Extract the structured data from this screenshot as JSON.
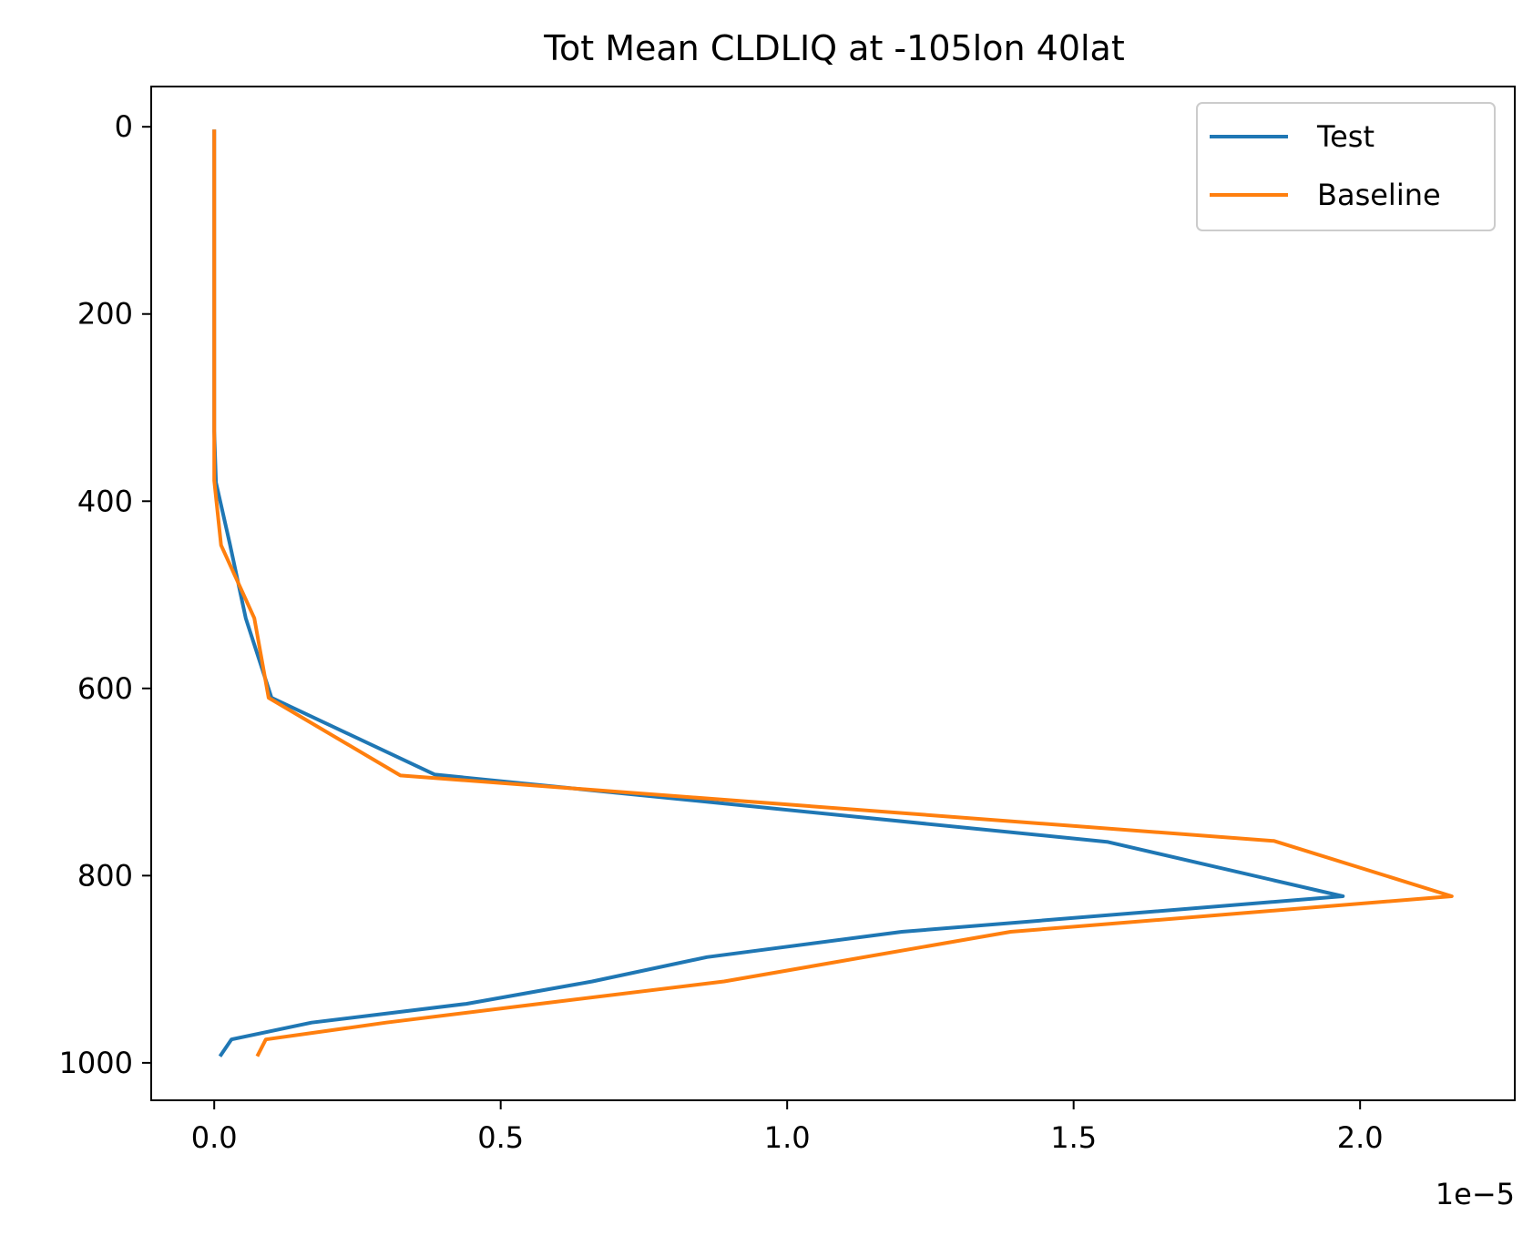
{
  "chart_data": {
    "type": "line",
    "title": "Tot Mean CLDLIQ at -105lon 40lat",
    "xlabel": "",
    "ylabel": "",
    "x_offset_label": "1e−5",
    "x_scale": 1e-05,
    "xlim": [
      -0.11,
      2.27
    ],
    "ylim": [
      1040,
      -43
    ],
    "x_ticks": [
      0.0,
      0.5,
      1.0,
      1.5,
      2.0
    ],
    "x_tick_labels": [
      "0.0",
      "0.5",
      "1.0",
      "1.5",
      "2.0"
    ],
    "y_ticks": [
      0,
      200,
      400,
      600,
      800,
      1000
    ],
    "y_tick_labels": [
      "0",
      "200",
      "400",
      "600",
      "800",
      "1000"
    ],
    "y_inverted": true,
    "grid": false,
    "legend_position": "top-right",
    "series": [
      {
        "name": "Test",
        "color": "#1f77b4",
        "x": [
          0.0,
          0.0,
          0.0,
          0.0,
          0.0,
          0.003,
          0.027,
          0.055,
          0.1,
          0.385,
          1.56,
          1.97,
          1.2,
          0.86,
          0.66,
          0.44,
          0.17,
          0.03,
          0.01
        ],
        "y": [
          3,
          100,
          200,
          300,
          325,
          380,
          445,
          525,
          610,
          692,
          764,
          822,
          860,
          887,
          913,
          937,
          957,
          975,
          993
        ]
      },
      {
        "name": "Baseline",
        "color": "#ff7f0e",
        "x": [
          0.0,
          0.0,
          0.0,
          0.0,
          0.0,
          0.0,
          0.012,
          0.07,
          0.095,
          0.325,
          1.85,
          2.16,
          1.39,
          0.89,
          0.58,
          0.3,
          0.09,
          0.075
        ],
        "y": [
          3,
          100,
          200,
          300,
          325,
          378,
          447,
          525,
          610,
          693,
          763,
          822,
          860,
          913,
          936,
          957,
          975,
          993
        ]
      }
    ]
  }
}
